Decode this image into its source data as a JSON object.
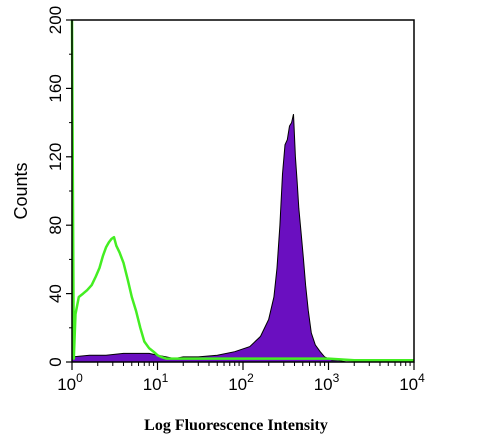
{
  "chart_data": {
    "type": "area",
    "title": "",
    "xlabel": "Log Fluorescence Intensity",
    "ylabel": "Counts",
    "xscale": "log",
    "xlim": [
      1,
      10000
    ],
    "ylim": [
      0,
      200
    ],
    "x_ticks": [
      {
        "base": "10",
        "exp": "0"
      },
      {
        "base": "10",
        "exp": "1"
      },
      {
        "base": "10",
        "exp": "2"
      },
      {
        "base": "10",
        "exp": "3"
      },
      {
        "base": "10",
        "exp": "4"
      }
    ],
    "y_ticks": [
      "0",
      "40",
      "80",
      "120",
      "160",
      "200"
    ],
    "grid": false,
    "legend": "none",
    "series": [
      {
        "style": "filled",
        "color": "#6a0fc0",
        "x": [
          1,
          1.6,
          2.5,
          4,
          6.3,
          8,
          10,
          12.6,
          15.8,
          20,
          30,
          50,
          80,
          120,
          160,
          200,
          230,
          250,
          270,
          290,
          310,
          330,
          350,
          370,
          390,
          410,
          430,
          450,
          480,
          510,
          540,
          580,
          630,
          700,
          800,
          900,
          1000,
          1100,
          1300,
          1600,
          2000
        ],
        "y": [
          3,
          4,
          4,
          5,
          5,
          5,
          4,
          3,
          2,
          3,
          3,
          4,
          6,
          9,
          15,
          25,
          38,
          55,
          80,
          110,
          127,
          130,
          138,
          140,
          145,
          120,
          105,
          90,
          75,
          60,
          45,
          30,
          17,
          10,
          6,
          3,
          2,
          1,
          1,
          0,
          0
        ]
      },
      {
        "style": "line",
        "color": "#44ee22",
        "x": [
          1,
          1.05,
          1.1,
          1.2,
          1.35,
          1.5,
          1.7,
          1.9,
          2.1,
          2.3,
          2.5,
          2.7,
          2.9,
          3.1,
          3.3,
          3.6,
          4,
          4.5,
          5,
          5.6,
          6.3,
          7,
          8,
          9,
          10,
          11,
          12.6,
          15.8,
          20,
          30,
          50,
          100,
          200,
          500,
          1000,
          2000,
          5000,
          10000
        ],
        "y": [
          200,
          2,
          28,
          38,
          40,
          42,
          45,
          50,
          55,
          62,
          67,
          70,
          72,
          73,
          68,
          64,
          58,
          48,
          38,
          30,
          20,
          12,
          8,
          6,
          4,
          3,
          2,
          2,
          2,
          2,
          2,
          2,
          2,
          2,
          2,
          1,
          1,
          1
        ]
      }
    ]
  }
}
